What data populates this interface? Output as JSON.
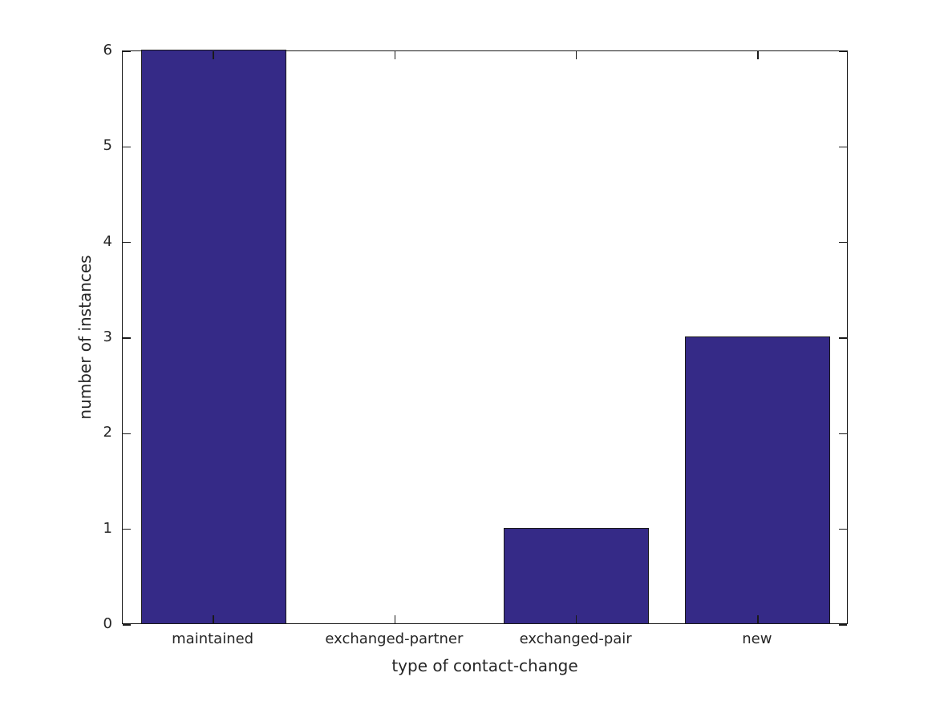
{
  "chart_data": {
    "type": "bar",
    "title": "",
    "categories": [
      "maintained",
      "exchanged-partner",
      "exchanged-pair",
      "new"
    ],
    "values": [
      6,
      0,
      1,
      3
    ],
    "xlabel": "type of contact-change",
    "ylabel": "number of instances",
    "ylim": [
      0,
      6
    ],
    "yticks": [
      0,
      1,
      2,
      3,
      4,
      5,
      6
    ],
    "ytick_labels": [
      "0",
      "1",
      "2",
      "3",
      "4",
      "5",
      "6"
    ],
    "bar_width_fraction": 0.8,
    "grid": false,
    "legend": null,
    "colors": {
      "bar_fill": "#352A87",
      "bar_edge": "#1a1a1a",
      "axis_line": "#1a1a1a",
      "text": "#262626",
      "background": "#ffffff"
    }
  }
}
